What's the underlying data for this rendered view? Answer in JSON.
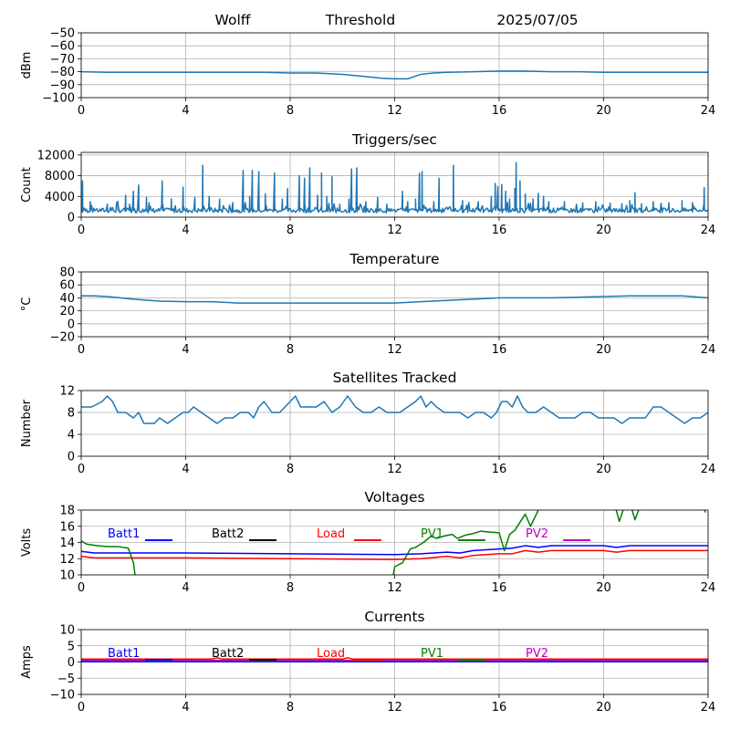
{
  "header": {
    "station": "Wolff",
    "mode": "Threshold",
    "date": "2025/07/05"
  },
  "colors": {
    "series_default": "#1f77b4",
    "grid": "#b0b0b0",
    "batt1": "#0000ff",
    "batt2": "#000000",
    "load": "#ff0000",
    "pv1": "#008000",
    "pv2": "#bf00bf"
  },
  "chart_data": [
    {
      "id": "signal",
      "type": "line",
      "title": "",
      "xlabel": "",
      "ylabel": "dBm",
      "xlim": [
        0,
        24
      ],
      "ylim": [
        -100,
        -50
      ],
      "xticks": [
        0,
        4,
        8,
        12,
        16,
        20,
        24
      ],
      "yticks": [
        -100,
        -90,
        -80,
        -70,
        -60,
        -50
      ],
      "grid": true,
      "series": [
        {
          "color": "#1f77b4",
          "x": [
            0,
            1,
            2,
            4,
            6,
            7,
            8,
            9,
            10,
            10.5,
            11,
            11.5,
            12,
            12.5,
            13,
            13.5,
            14,
            15,
            16,
            17,
            18,
            19,
            20,
            22,
            24
          ],
          "y": [
            -80,
            -80.5,
            -80.5,
            -80.5,
            -80.5,
            -80.5,
            -81,
            -81,
            -82,
            -83,
            -84,
            -85,
            -85.5,
            -85.5,
            -82,
            -81,
            -80.5,
            -80,
            -79.5,
            -79.5,
            -80,
            -80,
            -80.5,
            -80.5,
            -80.5
          ]
        }
      ]
    },
    {
      "id": "triggers",
      "type": "line",
      "title": "Triggers/sec",
      "xlabel": "",
      "ylabel": "Count",
      "xlim": [
        0,
        24
      ],
      "ylim": [
        0,
        12500
      ],
      "xticks": [
        0,
        4,
        8,
        12,
        16,
        20,
        24
      ],
      "yticks": [
        0,
        4000,
        8000,
        12000
      ],
      "grid": true,
      "series": [
        {
          "color": "#1f77b4",
          "baseline": 1300,
          "spikes": [
            [
              0.05,
              7000
            ],
            [
              0.35,
              3000
            ],
            [
              1.0,
              2500
            ],
            [
              1.4,
              3000
            ],
            [
              1.7,
              4200
            ],
            [
              1.85,
              2500
            ],
            [
              2.0,
              5000
            ],
            [
              2.2,
              6200
            ],
            [
              2.5,
              3800
            ],
            [
              2.6,
              2800
            ],
            [
              3.1,
              7000
            ],
            [
              3.45,
              3500
            ],
            [
              3.9,
              5800
            ],
            [
              4.35,
              3800
            ],
            [
              4.65,
              10000
            ],
            [
              4.9,
              4000
            ],
            [
              5.3,
              3500
            ],
            [
              5.8,
              2800
            ],
            [
              6.2,
              9000
            ],
            [
              6.45,
              4000
            ],
            [
              6.55,
              9000
            ],
            [
              6.8,
              8800
            ],
            [
              7.05,
              4500
            ],
            [
              7.4,
              8500
            ],
            [
              7.7,
              3500
            ],
            [
              7.9,
              5500
            ],
            [
              8.35,
              8000
            ],
            [
              8.55,
              7500
            ],
            [
              8.75,
              9500
            ],
            [
              9.05,
              4200
            ],
            [
              9.2,
              8500
            ],
            [
              9.4,
              4000
            ],
            [
              9.6,
              7800
            ],
            [
              9.9,
              2500
            ],
            [
              10.25,
              3500
            ],
            [
              10.35,
              9300
            ],
            [
              10.55,
              9500
            ],
            [
              10.9,
              3000
            ],
            [
              11.35,
              3800
            ],
            [
              11.7,
              2500
            ],
            [
              12.3,
              5000
            ],
            [
              12.5,
              3000
            ],
            [
              12.8,
              3500
            ],
            [
              12.95,
              8500
            ],
            [
              13.05,
              8800
            ],
            [
              13.5,
              3000
            ],
            [
              13.7,
              7500
            ],
            [
              14.25,
              10000
            ],
            [
              14.6,
              3200
            ],
            [
              15.2,
              3000
            ],
            [
              15.7,
              4000
            ],
            [
              15.85,
              6500
            ],
            [
              15.95,
              5900
            ],
            [
              16.1,
              6300
            ],
            [
              16.25,
              5000
            ],
            [
              16.4,
              3500
            ],
            [
              16.6,
              5500
            ],
            [
              16.65,
              10500
            ],
            [
              16.8,
              7000
            ],
            [
              17.0,
              4500
            ],
            [
              17.3,
              3500
            ],
            [
              17.5,
              4600
            ],
            [
              17.7,
              4000
            ],
            [
              17.9,
              3000
            ],
            [
              18.5,
              3000
            ],
            [
              19.2,
              2800
            ],
            [
              19.7,
              3000
            ],
            [
              20.25,
              2700
            ],
            [
              20.7,
              2600
            ],
            [
              21.0,
              3200
            ],
            [
              21.2,
              4700
            ],
            [
              21.45,
              2600
            ],
            [
              21.9,
              3000
            ],
            [
              22.5,
              2800
            ],
            [
              23.0,
              3200
            ],
            [
              23.4,
              2800
            ],
            [
              23.85,
              5700
            ]
          ]
        }
      ]
    },
    {
      "id": "temperature",
      "type": "line",
      "title": "Temperature",
      "xlabel": "",
      "ylabel": "°C",
      "xlim": [
        0,
        24
      ],
      "ylim": [
        -20,
        80
      ],
      "xticks": [
        0,
        4,
        8,
        12,
        16,
        20,
        24
      ],
      "yticks": [
        -20,
        0,
        20,
        40,
        60,
        80
      ],
      "grid": true,
      "series": [
        {
          "color": "#1f77b4",
          "x": [
            0,
            0.5,
            1,
            2,
            3,
            4,
            5,
            6,
            7,
            8,
            10,
            12,
            12.5,
            13,
            14,
            15,
            16,
            17,
            18,
            19,
            20,
            21,
            22,
            23,
            24
          ],
          "y": [
            43,
            43,
            42,
            38,
            35,
            34,
            34,
            32,
            32,
            32,
            32,
            32,
            33,
            34,
            36,
            38,
            40,
            40,
            40,
            41,
            42,
            43,
            43,
            43,
            40
          ]
        }
      ]
    },
    {
      "id": "satellites",
      "type": "line",
      "title": "Satellites Tracked",
      "xlabel": "",
      "ylabel": "Number",
      "xlim": [
        0,
        24
      ],
      "ylim": [
        0,
        12
      ],
      "xticks": [
        0,
        4,
        8,
        12,
        16,
        20,
        24
      ],
      "yticks": [
        0,
        4,
        8,
        12
      ],
      "grid": true,
      "series": [
        {
          "color": "#1f77b4",
          "x": [
            0,
            0.4,
            0.8,
            1.0,
            1.2,
            1.4,
            1.7,
            2.0,
            2.2,
            2.4,
            2.8,
            3.0,
            3.3,
            3.6,
            3.9,
            4.1,
            4.3,
            4.6,
            4.9,
            5.2,
            5.5,
            5.8,
            6.1,
            6.4,
            6.6,
            6.8,
            7.0,
            7.3,
            7.6,
            7.8,
            8.0,
            8.2,
            8.4,
            8.7,
            9.0,
            9.3,
            9.6,
            9.9,
            10.2,
            10.5,
            10.8,
            11.1,
            11.4,
            11.7,
            12.0,
            12.2,
            12.5,
            12.8,
            13.0,
            13.2,
            13.4,
            13.6,
            13.9,
            14.2,
            14.5,
            14.8,
            15.1,
            15.4,
            15.7,
            15.9,
            16.1,
            16.3,
            16.5,
            16.7,
            16.9,
            17.1,
            17.4,
            17.7,
            18.0,
            18.3,
            18.6,
            18.9,
            19.2,
            19.5,
            19.8,
            20.1,
            20.4,
            20.7,
            21.0,
            21.3,
            21.6,
            21.9,
            22.2,
            22.5,
            22.8,
            23.1,
            23.4,
            23.7,
            24.0
          ],
          "y": [
            9,
            9,
            10,
            11,
            10,
            8,
            8,
            7,
            8,
            6,
            6,
            7,
            6,
            7,
            8,
            8,
            9,
            8,
            7,
            6,
            7,
            7,
            8,
            8,
            7,
            9,
            10,
            8,
            8,
            9,
            10,
            11,
            9,
            9,
            9,
            10,
            8,
            9,
            11,
            9,
            8,
            8,
            9,
            8,
            8,
            8,
            9,
            10,
            11,
            9,
            10,
            9,
            8,
            8,
            8,
            7,
            8,
            8,
            7,
            8,
            10,
            10,
            9,
            11,
            9,
            8,
            8,
            9,
            8,
            7,
            7,
            7,
            8,
            8,
            7,
            7,
            7,
            6,
            7,
            7,
            7,
            9,
            9,
            8,
            7,
            6,
            7,
            7,
            8
          ]
        }
      ]
    },
    {
      "id": "voltages",
      "type": "line",
      "title": "Voltages",
      "xlabel": "",
      "ylabel": "Volts",
      "xlim": [
        0,
        24
      ],
      "ylim": [
        10,
        18
      ],
      "xticks": [
        0,
        4,
        8,
        12,
        16,
        20,
        24
      ],
      "yticks": [
        10,
        12,
        14,
        16,
        18
      ],
      "grid": true,
      "legend": "top, horizontal",
      "series": [
        {
          "name": "Batt1",
          "color": "#0000ff",
          "x": [
            0,
            0.5,
            1,
            4,
            8,
            12,
            13,
            14,
            14.5,
            15,
            16,
            16.5,
            17,
            17.5,
            18,
            19,
            20,
            20.5,
            21,
            24
          ],
          "y": [
            12.9,
            12.7,
            12.7,
            12.7,
            12.6,
            12.5,
            12.6,
            12.8,
            12.7,
            13.0,
            13.2,
            13.3,
            13.6,
            13.4,
            13.6,
            13.6,
            13.6,
            13.4,
            13.6,
            13.6
          ]
        },
        {
          "name": "Batt2",
          "color": "#000000",
          "x": [],
          "y": []
        },
        {
          "name": "Load",
          "color": "#ff0000",
          "x": [
            0,
            0.5,
            1,
            4,
            8,
            12,
            13,
            14,
            14.5,
            15,
            16,
            16.5,
            17,
            17.5,
            18,
            19,
            20,
            20.5,
            21,
            24
          ],
          "y": [
            12.3,
            12.1,
            12.1,
            12.1,
            12.0,
            11.9,
            12.0,
            12.3,
            12.1,
            12.4,
            12.6,
            12.6,
            13.0,
            12.8,
            13.0,
            13.0,
            13.0,
            12.8,
            13.0,
            13.0
          ]
        },
        {
          "name": "PV1",
          "color": "#008000",
          "segments": [
            {
              "x": [
                0,
                0.2,
                0.6,
                1.0,
                1.4,
                1.8,
                2.0,
                2.1
              ],
              "y": [
                14.2,
                13.8,
                13.6,
                13.5,
                13.5,
                13.3,
                11.5,
                9.0
              ]
            },
            {
              "x": [
                11.9,
                12.0,
                12.3,
                12.6,
                12.8,
                13.1,
                13.4,
                13.6,
                13.9,
                14.2,
                14.4,
                14.7,
                15.0,
                15.3,
                15.6,
                16.0,
                16.2,
                16.4,
                16.6,
                16.8,
                17.0,
                17.2,
                17.5,
                17.7,
                17.85
              ],
              "y": [
                9.0,
                11.0,
                11.5,
                13.2,
                13.4,
                14.0,
                14.8,
                14.5,
                14.8,
                15.0,
                14.5,
                14.9,
                15.1,
                15.4,
                15.3,
                15.2,
                13.0,
                15.0,
                15.5,
                16.5,
                17.5,
                16.0,
                18.0,
                19.5,
                20.0
              ]
            },
            {
              "x": [
                20.4,
                20.6,
                20.8,
                21.0,
                21.2,
                21.4,
                21.6
              ],
              "y": [
                19.0,
                16.6,
                18.5,
                19.0,
                16.8,
                18.5,
                19.0
              ]
            },
            {
              "x": [
                23.8,
                23.9
              ],
              "y": [
                18.5,
                17.7
              ]
            }
          ]
        },
        {
          "name": "PV2",
          "color": "#bf00bf",
          "x": [],
          "y": []
        }
      ]
    },
    {
      "id": "currents",
      "type": "line",
      "title": "Currents",
      "xlabel": "",
      "ylabel": "Amps",
      "xlim": [
        0,
        24
      ],
      "ylim": [
        -10,
        10
      ],
      "xticks": [
        0,
        4,
        8,
        12,
        16,
        20,
        24
      ],
      "yticks": [
        -10,
        -5,
        0,
        5,
        10
      ],
      "grid": true,
      "legend": "top, horizontal",
      "series": [
        {
          "name": "Batt1",
          "color": "#0000ff",
          "x": [
            0,
            24
          ],
          "y": [
            0.1,
            0.1
          ]
        },
        {
          "name": "Batt2",
          "color": "#000000",
          "x": [],
          "y": []
        },
        {
          "name": "Load",
          "color": "#ff0000",
          "x": [
            0,
            5.0,
            5.2,
            5.4,
            10.0,
            10.2,
            10.4,
            24
          ],
          "y": [
            0.9,
            0.9,
            1.3,
            0.9,
            0.9,
            1.3,
            0.9,
            0.9
          ]
        },
        {
          "name": "PV1",
          "color": "#008000",
          "x": [
            0,
            24
          ],
          "y": [
            0.4,
            0.4
          ]
        },
        {
          "name": "PV2",
          "color": "#bf00bf",
          "x": [
            0,
            24
          ],
          "y": [
            0.5,
            0.5
          ]
        }
      ]
    }
  ]
}
